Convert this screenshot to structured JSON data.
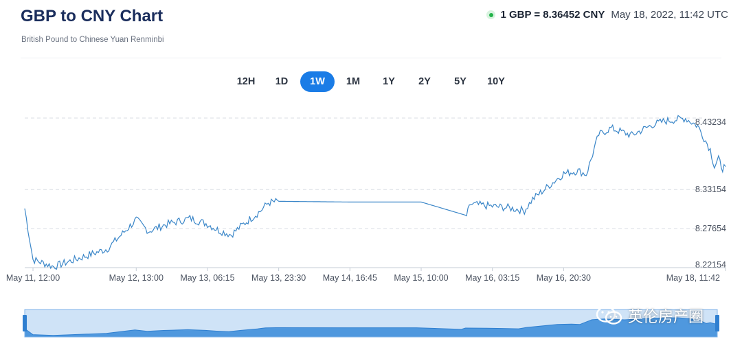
{
  "header": {
    "title": "GBP to CNY Chart",
    "subtitle": "British Pound to Chinese Yuan Renminbi",
    "rate": "1 GBP = 8.36452 CNY",
    "timestamp": "May 18, 2022, 11:42 UTC",
    "live_color": "#23b34a"
  },
  "range_tabs": [
    {
      "label": "12H",
      "active": false
    },
    {
      "label": "1D",
      "active": false
    },
    {
      "label": "1W",
      "active": true
    },
    {
      "label": "1M",
      "active": false
    },
    {
      "label": "1Y",
      "active": false
    },
    {
      "label": "2Y",
      "active": false
    },
    {
      "label": "5Y",
      "active": false
    },
    {
      "label": "10Y",
      "active": false
    }
  ],
  "watermark": {
    "text": "英伦房产圈"
  },
  "chart_data": {
    "type": "line",
    "series": [
      {
        "color": "#3a86c8",
        "x": [
          "May 11, 10:00",
          "May 11, 12:00",
          "May 11, 17:00",
          "May 12, 06:00",
          "May 12, 13:00",
          "May 12, 16:00",
          "May 12, 20:00",
          "May 13, 02:00",
          "May 13, 06:15",
          "May 13, 09:00",
          "May 13, 12:00",
          "May 13, 15:00",
          "May 13, 19:00",
          "May 13, 21:00",
          "May 13, 23:30",
          "May 14, 16:45",
          "May 15, 10:00",
          "May 15, 21:00",
          "May 15, 22:00",
          "May 16, 03:15",
          "May 16, 07:00",
          "May 16, 11:00",
          "May 16, 13:00",
          "May 16, 20:30",
          "May 17, 00:00",
          "May 17, 02:00",
          "May 17, 05:00",
          "May 17, 08:00",
          "May 17, 13:00",
          "May 17, 18:00",
          "May 17, 21:00",
          "May 18, 02:00",
          "May 18, 05:00",
          "May 18, 08:00",
          "May 18, 09:00",
          "May 18, 10:00",
          "May 18, 11:00",
          "May 18, 11:42"
        ],
        "y": [
          8.305,
          8.233,
          8.223,
          8.248,
          8.289,
          8.273,
          8.282,
          8.291,
          8.283,
          8.274,
          8.268,
          8.283,
          8.301,
          8.313,
          8.315,
          8.314,
          8.314,
          8.295,
          8.311,
          8.308,
          8.306,
          8.302,
          8.318,
          8.354,
          8.358,
          8.353,
          8.409,
          8.418,
          8.408,
          8.423,
          8.428,
          8.432,
          8.421,
          8.388,
          8.364,
          8.374,
          8.362,
          8.364
        ]
      }
    ],
    "x_ticks": [
      "May 11, 12:00",
      "May 12, 13:00",
      "May 13, 06:15",
      "May 13, 23:30",
      "May 14, 16:45",
      "May 15, 10:00",
      "May 16, 03:15",
      "May 16, 20:30",
      "May 18, 11:42"
    ],
    "y_ticks": [
      8.22154,
      8.27654,
      8.33154,
      8.43234
    ],
    "ylim": [
      8.22154,
      8.43234
    ],
    "grid": true,
    "line_color": "#3a86c8",
    "navigator_fill": "#4f98de",
    "navigator_bg": "#cfe3f7"
  }
}
